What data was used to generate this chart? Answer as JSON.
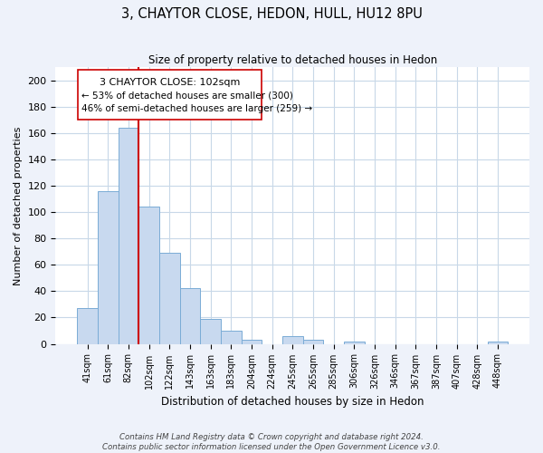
{
  "title": "3, CHAYTOR CLOSE, HEDON, HULL, HU12 8PU",
  "subtitle": "Size of property relative to detached houses in Hedon",
  "xlabel": "Distribution of detached houses by size in Hedon",
  "ylabel": "Number of detached properties",
  "bar_labels": [
    "41sqm",
    "61sqm",
    "82sqm",
    "102sqm",
    "122sqm",
    "143sqm",
    "163sqm",
    "183sqm",
    "204sqm",
    "224sqm",
    "245sqm",
    "265sqm",
    "285sqm",
    "306sqm",
    "326sqm",
    "346sqm",
    "367sqm",
    "387sqm",
    "407sqm",
    "428sqm",
    "448sqm"
  ],
  "bar_heights": [
    27,
    116,
    164,
    104,
    69,
    42,
    19,
    10,
    3,
    0,
    6,
    3,
    0,
    2,
    0,
    0,
    0,
    0,
    0,
    0,
    2
  ],
  "bar_color": "#c8d9ef",
  "bar_edge_color": "#7aacd6",
  "vline_color": "#cc0000",
  "ylim": [
    0,
    210
  ],
  "yticks": [
    0,
    20,
    40,
    60,
    80,
    100,
    120,
    140,
    160,
    180,
    200
  ],
  "annotation_title": "3 CHAYTOR CLOSE: 102sqm",
  "annotation_line1": "← 53% of detached houses are smaller (300)",
  "annotation_line2": "46% of semi-detached houses are larger (259) →",
  "footer_line1": "Contains HM Land Registry data © Crown copyright and database right 2024.",
  "footer_line2": "Contains public sector information licensed under the Open Government Licence v3.0.",
  "background_color": "#eef2fa",
  "plot_background": "#ffffff",
  "grid_color": "#c8d8e8"
}
